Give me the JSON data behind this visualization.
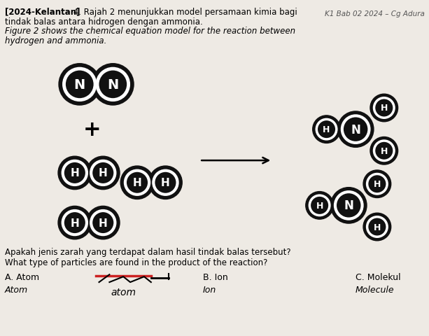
{
  "title_line1_bold": "[2024-Kelantan]",
  "title_line1_rest": " 4. Rajah 2 menunjukkan model persamaan kimia bagi",
  "title_line2": "tindak balas antara hidrogen dengan ammonia.",
  "title_line3": "Figure 2 shows the chemical equation model for the reaction between",
  "title_line4": "hydrogen and ammonia.",
  "header": "K1 Bab 02 2024 – Cg Adura",
  "question_line1": "Apakah jenis zarah yang terdapat dalam hasil tindak balas tersebut?",
  "question_line2": "What type of particles are found in the product of the reaction?",
  "answer_A": "A. Atom",
  "answer_A_italic": "Atom",
  "answer_B": "B. Ion",
  "answer_B_italic": "Ion",
  "answer_C": "C. Molekul",
  "answer_C_italic": "Molecule",
  "bg_color": "#eeeae4",
  "atom_color": "#111111"
}
